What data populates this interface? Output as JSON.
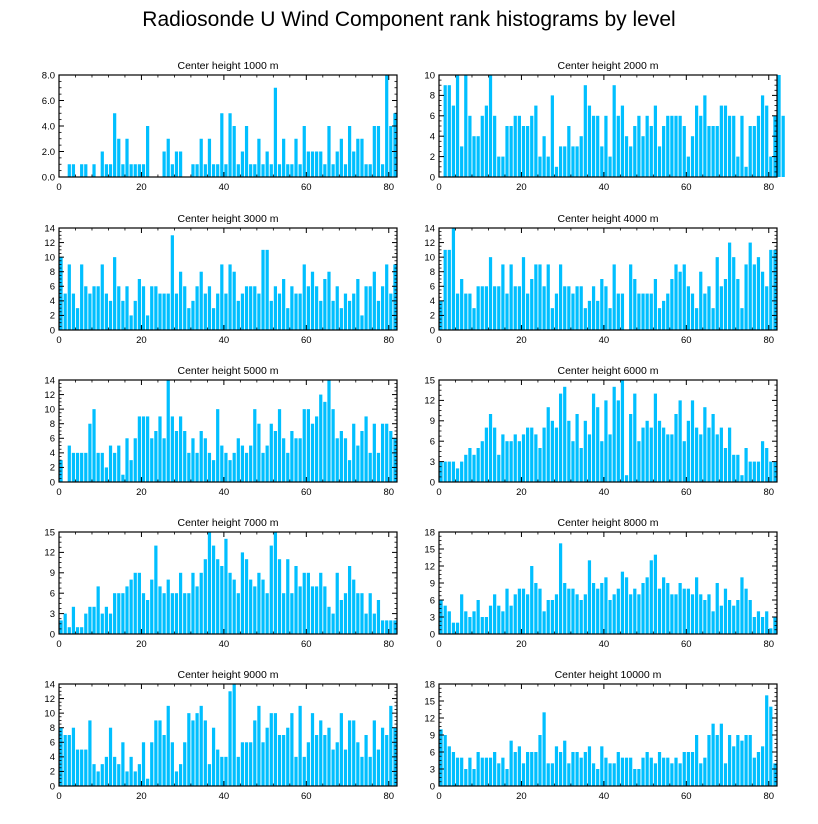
{
  "title": "Radiosonde U Wind Component rank histograms by level",
  "bar_color": "#00bfff",
  "chart_data": [
    {
      "type": "bar",
      "title": "Center height 1000 m",
      "xlim": [
        0,
        82
      ],
      "xticks": [
        0,
        20,
        40,
        60,
        80
      ],
      "ylim": [
        0,
        8
      ],
      "yticks": [
        0,
        2,
        4,
        6,
        8
      ],
      "ytick_labels": [
        "0.0",
        "2.0",
        "4.0",
        "6.0",
        "8.0"
      ],
      "values": [
        0,
        0,
        1,
        1,
        0,
        1,
        1,
        0,
        1,
        0,
        2,
        1,
        1,
        5,
        3,
        1,
        3,
        1,
        1,
        1,
        1,
        4,
        0,
        0,
        0,
        2,
        3,
        1,
        2,
        2,
        0,
        0,
        1,
        1,
        3,
        1,
        3,
        1,
        1,
        5,
        1,
        5,
        4,
        1,
        2,
        4,
        1,
        1,
        3,
        1,
        2,
        1,
        7,
        1,
        3,
        1,
        1,
        3,
        1,
        4,
        2,
        2,
        2,
        2,
        1,
        4,
        1,
        2,
        3,
        1,
        4,
        2,
        3,
        3,
        1,
        1,
        4,
        4,
        1,
        8,
        4,
        5
      ]
    },
    {
      "type": "bar",
      "title": "Center height 2000 m",
      "xlim": [
        0,
        82
      ],
      "xticks": [
        0,
        20,
        40,
        60,
        80
      ],
      "ylim": [
        0,
        10
      ],
      "yticks": [
        0,
        2,
        4,
        6,
        8,
        10
      ],
      "ytick_labels": [
        "0",
        "2",
        "4",
        "6",
        "8",
        "10"
      ],
      "values": [
        0,
        9,
        9,
        7,
        10,
        3,
        10,
        6,
        4,
        4,
        6,
        7,
        10,
        6,
        2,
        2,
        5,
        5,
        6,
        6,
        5,
        5,
        6,
        7,
        2,
        4,
        2,
        8,
        1,
        3,
        3,
        5,
        3,
        3,
        4,
        9,
        7,
        6,
        6,
        3,
        6,
        2,
        9,
        6,
        7,
        4,
        3,
        5,
        6,
        4,
        6,
        5,
        7,
        3,
        5,
        6,
        6,
        6,
        6,
        5,
        2,
        4,
        7,
        6,
        8,
        5,
        5,
        5,
        7,
        7,
        6,
        6,
        2,
        6,
        1,
        5,
        5,
        6,
        8,
        7,
        2,
        6,
        10,
        6
      ]
    },
    {
      "type": "bar",
      "title": "Center height 3000 m",
      "xlim": [
        0,
        82
      ],
      "xticks": [
        0,
        20,
        40,
        60,
        80
      ],
      "ylim": [
        0,
        14
      ],
      "yticks": [
        0,
        2,
        4,
        6,
        8,
        10,
        12,
        14
      ],
      "ytick_labels": [
        "0",
        "2",
        "4",
        "6",
        "8",
        "10",
        "12",
        "14"
      ],
      "values": [
        10,
        5,
        9,
        5,
        3,
        9,
        6,
        5,
        6,
        6,
        9,
        5,
        4,
        10,
        6,
        4,
        6,
        2,
        4,
        7,
        6,
        2,
        6,
        6,
        5,
        5,
        5,
        13,
        5,
        8,
        6,
        3,
        4,
        6,
        8,
        5,
        6,
        3,
        5,
        9,
        5,
        9,
        8,
        4,
        5,
        6,
        6,
        6,
        5,
        11,
        11,
        4,
        6,
        5,
        7,
        3,
        6,
        5,
        5,
        9,
        6,
        8,
        6,
        4,
        7,
        8,
        4,
        6,
        3,
        5,
        4,
        5,
        7,
        2,
        6,
        6,
        8,
        4,
        6,
        9,
        5,
        9
      ]
    },
    {
      "type": "bar",
      "title": "Center height 4000 m",
      "xlim": [
        0,
        82
      ],
      "xticks": [
        0,
        20,
        40,
        60,
        80
      ],
      "ylim": [
        0,
        14
      ],
      "yticks": [
        0,
        2,
        4,
        6,
        8,
        10,
        12,
        14
      ],
      "ytick_labels": [
        "0",
        "2",
        "4",
        "6",
        "8",
        "10",
        "12",
        "14"
      ],
      "values": [
        4,
        11,
        11,
        14,
        5,
        7,
        5,
        5,
        3,
        6,
        6,
        6,
        10,
        6,
        6,
        9,
        5,
        9,
        6,
        6,
        10,
        5,
        7,
        9,
        9,
        6,
        9,
        3,
        5,
        9,
        6,
        6,
        5,
        6,
        6,
        3,
        4,
        6,
        4,
        7,
        6,
        3,
        9,
        5,
        5,
        0,
        9,
        7,
        5,
        5,
        5,
        5,
        7,
        3,
        4,
        5,
        7,
        9,
        8,
        9,
        6,
        5,
        3,
        8,
        5,
        6,
        3,
        10,
        6,
        7,
        12,
        10,
        7,
        3,
        9,
        12,
        9,
        10,
        8,
        6,
        11,
        11
      ]
    },
    {
      "type": "bar",
      "title": "Center height 5000 m",
      "xlim": [
        0,
        82
      ],
      "xticks": [
        0,
        20,
        40,
        60,
        80
      ],
      "ylim": [
        0,
        14
      ],
      "yticks": [
        0,
        2,
        4,
        6,
        8,
        10,
        12,
        14
      ],
      "ytick_labels": [
        "0",
        "2",
        "4",
        "6",
        "8",
        "10",
        "12",
        "14"
      ],
      "values": [
        3,
        0,
        5,
        4,
        4,
        4,
        4,
        8,
        10,
        4,
        4,
        2,
        5,
        4,
        5,
        1,
        6,
        3,
        6,
        9,
        9,
        9,
        6,
        7,
        9,
        6,
        14,
        9,
        7,
        9,
        7,
        4,
        6,
        4,
        7,
        6,
        4,
        3,
        10,
        5,
        4,
        3,
        4,
        6,
        5,
        4,
        5,
        10,
        8,
        4,
        5,
        8,
        7,
        10,
        6,
        4,
        7,
        6,
        6,
        10,
        10,
        8,
        9,
        12,
        11,
        14,
        10,
        6,
        7,
        6,
        3,
        8,
        5,
        7,
        9,
        4,
        8,
        4,
        8,
        8,
        7,
        6
      ]
    },
    {
      "type": "bar",
      "title": "Center height 6000 m",
      "xlim": [
        0,
        82
      ],
      "xticks": [
        0,
        20,
        40,
        60,
        80
      ],
      "ylim": [
        0,
        15
      ],
      "yticks": [
        0,
        3,
        6,
        9,
        12,
        15
      ],
      "ytick_labels": [
        "0",
        "3",
        "6",
        "9",
        "12",
        "15"
      ],
      "values": [
        3,
        3,
        3,
        3,
        2,
        3,
        4,
        5,
        4,
        5,
        6,
        8,
        10,
        8,
        4,
        7,
        6,
        6,
        7,
        6,
        7,
        8,
        8,
        7,
        5,
        8,
        11,
        9,
        8,
        13,
        14,
        9,
        6,
        10,
        5,
        9,
        7,
        13,
        11,
        6,
        12,
        7,
        14,
        12,
        15,
        1,
        10,
        13,
        6,
        8,
        9,
        8,
        13,
        9,
        8,
        7,
        7,
        10,
        12,
        6,
        9,
        12,
        8,
        7,
        11,
        8,
        10,
        7,
        8,
        5,
        8,
        4,
        4,
        1,
        5,
        3,
        3,
        3,
        6,
        5,
        3,
        3
      ]
    },
    {
      "type": "bar",
      "title": "Center height 7000 m",
      "xlim": [
        0,
        82
      ],
      "xticks": [
        0,
        20,
        40,
        60,
        80
      ],
      "ylim": [
        0,
        15
      ],
      "yticks": [
        0,
        3,
        6,
        9,
        12,
        15
      ],
      "ytick_labels": [
        "0",
        "3",
        "6",
        "9",
        "12",
        "15"
      ],
      "values": [
        2,
        3,
        1,
        4,
        1,
        1,
        3,
        4,
        4,
        7,
        3,
        4,
        3,
        6,
        6,
        6,
        7,
        8,
        9,
        9,
        6,
        5,
        8,
        13,
        7,
        6,
        8,
        6,
        6,
        9,
        6,
        6,
        9,
        7,
        9,
        11,
        15,
        13,
        11,
        10,
        14,
        9,
        8,
        6,
        12,
        11,
        8,
        7,
        9,
        8,
        6,
        13,
        15,
        11,
        6,
        11,
        6,
        10,
        7,
        9,
        9,
        7,
        7,
        9,
        7,
        4,
        3,
        9,
        5,
        6,
        10,
        8,
        6,
        6,
        3,
        6,
        3,
        5,
        2,
        2,
        2,
        2
      ]
    },
    {
      "type": "bar",
      "title": "Center height 8000 m",
      "xlim": [
        0,
        82
      ],
      "xticks": [
        0,
        20,
        40,
        60,
        80
      ],
      "ylim": [
        0,
        18
      ],
      "yticks": [
        0,
        3,
        6,
        9,
        12,
        15,
        18
      ],
      "ytick_labels": [
        "0",
        "3",
        "6",
        "9",
        "12",
        "15",
        "18"
      ],
      "values": [
        6,
        5,
        4,
        2,
        2,
        7,
        4,
        3,
        4,
        6,
        3,
        3,
        5,
        7,
        5,
        4,
        8,
        5,
        7,
        8,
        8,
        7,
        12,
        9,
        8,
        4,
        6,
        6,
        7,
        16,
        9,
        8,
        8,
        7,
        6,
        7,
        13,
        9,
        8,
        9,
        10,
        6,
        7,
        8,
        11,
        10,
        7,
        8,
        7,
        9,
        10,
        13,
        14,
        8,
        10,
        9,
        7,
        7,
        9,
        8,
        8,
        7,
        10,
        7,
        6,
        7,
        4,
        9,
        5,
        8,
        6,
        5,
        6,
        10,
        8,
        6,
        3,
        4,
        3,
        4,
        1,
        3
      ]
    },
    {
      "type": "bar",
      "title": "Center height 9000 m",
      "xlim": [
        0,
        82
      ],
      "xticks": [
        0,
        20,
        40,
        60,
        80
      ],
      "ylim": [
        0,
        14
      ],
      "yticks": [
        0,
        2,
        4,
        6,
        8,
        10,
        12,
        14
      ],
      "ytick_labels": [
        "0",
        "2",
        "4",
        "6",
        "8",
        "10",
        "12",
        "14"
      ],
      "values": [
        8,
        7,
        7,
        8,
        5,
        5,
        5,
        9,
        3,
        2,
        3,
        4,
        8,
        4,
        3,
        6,
        2,
        4,
        2,
        3,
        6,
        1,
        6,
        9,
        9,
        7,
        11,
        6,
        2,
        3,
        6,
        10,
        9,
        10,
        11,
        9,
        3,
        8,
        5,
        4,
        4,
        13,
        14,
        4,
        6,
        6,
        6,
        9,
        11,
        6,
        8,
        10,
        10,
        7,
        7,
        8,
        10,
        4,
        11,
        4,
        6,
        10,
        7,
        9,
        7,
        8,
        5,
        6,
        10,
        5,
        9,
        9,
        6,
        4,
        7,
        4,
        9,
        5,
        8,
        7,
        11,
        8
      ]
    },
    {
      "type": "bar",
      "title": "Center height 10000 m",
      "xlim": [
        0,
        82
      ],
      "xticks": [
        0,
        20,
        40,
        60,
        80
      ],
      "ylim": [
        0,
        18
      ],
      "yticks": [
        0,
        3,
        6,
        9,
        12,
        15,
        18
      ],
      "ytick_labels": [
        "0",
        "3",
        "6",
        "9",
        "12",
        "15",
        "18"
      ],
      "values": [
        10,
        9,
        7,
        6,
        5,
        5,
        3,
        5,
        3,
        6,
        5,
        5,
        5,
        6,
        4,
        5,
        3,
        8,
        6,
        7,
        4,
        6,
        6,
        6,
        9,
        13,
        4,
        4,
        7,
        6,
        8,
        4,
        6,
        6,
        5,
        6,
        7,
        4,
        3,
        7,
        5,
        4,
        4,
        6,
        5,
        5,
        5,
        3,
        3,
        5,
        6,
        5,
        4,
        6,
        5,
        5,
        4,
        5,
        4,
        6,
        6,
        6,
        9,
        4,
        5,
        9,
        11,
        9,
        11,
        4,
        9,
        7,
        9,
        8,
        9,
        9,
        5,
        6,
        7,
        16,
        14,
        4
      ]
    }
  ]
}
